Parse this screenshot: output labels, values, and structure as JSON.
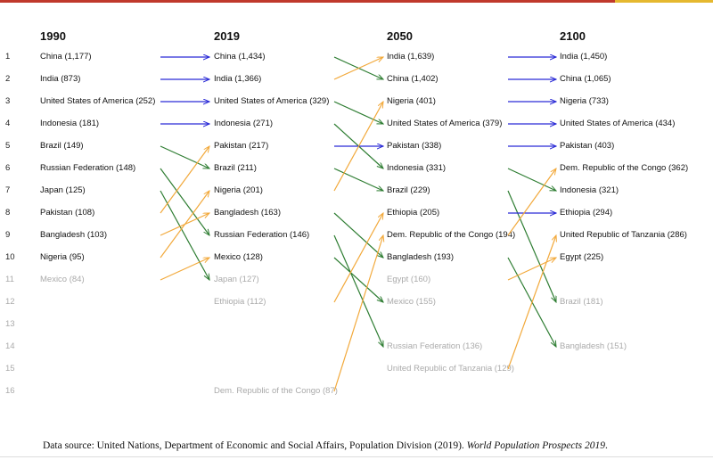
{
  "colors": {
    "same": "#2b2bd6",
    "up": "#f2a93b",
    "down": "#2e7d32",
    "faded_text": "#aaaaaa"
  },
  "years": [
    "1990",
    "2019",
    "2050",
    "2100"
  ],
  "ranks": [
    "1",
    "2",
    "3",
    "4",
    "5",
    "6",
    "7",
    "8",
    "9",
    "10",
    "11",
    "12",
    "13",
    "14",
    "15",
    "16"
  ],
  "columns": [
    {
      "entries": [
        {
          "rank": 1,
          "label": "China (1,177)"
        },
        {
          "rank": 2,
          "label": "India (873)"
        },
        {
          "rank": 3,
          "label": "United States of America (252)"
        },
        {
          "rank": 4,
          "label": "Indonesia (181)"
        },
        {
          "rank": 5,
          "label": "Brazil (149)"
        },
        {
          "rank": 6,
          "label": "Russian Federation (148)"
        },
        {
          "rank": 7,
          "label": "Japan (125)"
        },
        {
          "rank": 8,
          "label": "Pakistan (108)"
        },
        {
          "rank": 9,
          "label": "Bangladesh (103)"
        },
        {
          "rank": 10,
          "label": "Nigeria (95)"
        },
        {
          "rank": 11,
          "label": "Mexico (84)"
        }
      ]
    },
    {
      "entries": [
        {
          "rank": 1,
          "label": "China (1,434)"
        },
        {
          "rank": 2,
          "label": "India (1,366)"
        },
        {
          "rank": 3,
          "label": "United States of America (329)"
        },
        {
          "rank": 4,
          "label": "Indonesia (271)"
        },
        {
          "rank": 5,
          "label": "Pakistan (217)"
        },
        {
          "rank": 6,
          "label": "Brazil (211)"
        },
        {
          "rank": 7,
          "label": "Nigeria (201)"
        },
        {
          "rank": 8,
          "label": "Bangladesh (163)"
        },
        {
          "rank": 9,
          "label": "Russian Federation (146)"
        },
        {
          "rank": 10,
          "label": "Mexico (128)"
        },
        {
          "rank": 11,
          "label": "Japan (127)"
        },
        {
          "rank": 12,
          "label": "Ethiopia (112)"
        },
        {
          "rank": 16,
          "label": "Dem. Republic of the Congo (87)"
        }
      ]
    },
    {
      "entries": [
        {
          "rank": 1,
          "label": "India (1,639)"
        },
        {
          "rank": 2,
          "label": "China (1,402)"
        },
        {
          "rank": 3,
          "label": "Nigeria (401)"
        },
        {
          "rank": 4,
          "label": "United States of America (379)"
        },
        {
          "rank": 5,
          "label": "Pakistan (338)"
        },
        {
          "rank": 6,
          "label": "Indonesia (331)"
        },
        {
          "rank": 7,
          "label": "Brazil (229)"
        },
        {
          "rank": 8,
          "label": "Ethiopia (205)"
        },
        {
          "rank": 9,
          "label": "Dem. Republic of the Congo (194)"
        },
        {
          "rank": 10,
          "label": "Bangladesh (193)"
        },
        {
          "rank": 11,
          "label": "Egypt (160)"
        },
        {
          "rank": 12,
          "label": "Mexico (155)"
        },
        {
          "rank": 14,
          "label": "Russian Federation (136)"
        },
        {
          "rank": 15,
          "label": "United Republic of Tanzania (129)"
        }
      ]
    },
    {
      "entries": [
        {
          "rank": 1,
          "label": "India (1,450)"
        },
        {
          "rank": 2,
          "label": "China (1,065)"
        },
        {
          "rank": 3,
          "label": "Nigeria (733)"
        },
        {
          "rank": 4,
          "label": "United States of America (434)"
        },
        {
          "rank": 5,
          "label": "Pakistan (403)"
        },
        {
          "rank": 6,
          "label": "Dem. Republic of the Congo (362)"
        },
        {
          "rank": 7,
          "label": "Indonesia (321)"
        },
        {
          "rank": 8,
          "label": "Ethiopia (294)"
        },
        {
          "rank": 9,
          "label": "United Republic of Tanzania (286)"
        },
        {
          "rank": 10,
          "label": "Egypt (225)"
        },
        {
          "rank": 12,
          "label": "Brazil (181)"
        },
        {
          "rank": 14,
          "label": "Bangladesh (151)"
        }
      ]
    }
  ],
  "transitions": [
    [
      [
        1,
        1
      ],
      [
        2,
        2
      ],
      [
        3,
        3
      ],
      [
        4,
        4
      ],
      [
        5,
        6
      ],
      [
        6,
        9
      ],
      [
        7,
        11
      ],
      [
        8,
        5
      ],
      [
        9,
        8
      ],
      [
        10,
        7
      ],
      [
        11,
        10
      ]
    ],
    [
      [
        1,
        2
      ],
      [
        2,
        1
      ],
      [
        3,
        4
      ],
      [
        4,
        6
      ],
      [
        5,
        5
      ],
      [
        6,
        7
      ],
      [
        7,
        3
      ],
      [
        8,
        10
      ],
      [
        9,
        14
      ],
      [
        10,
        12
      ],
      [
        12,
        8
      ],
      [
        16,
        9
      ]
    ],
    [
      [
        1,
        1
      ],
      [
        2,
        2
      ],
      [
        3,
        3
      ],
      [
        4,
        4
      ],
      [
        5,
        5
      ],
      [
        6,
        7
      ],
      [
        7,
        12
      ],
      [
        8,
        8
      ],
      [
        9,
        6
      ],
      [
        10,
        14
      ],
      [
        11,
        10
      ],
      [
        15,
        9
      ]
    ]
  ],
  "source": {
    "prefix": "Data source: United Nations, Department of Economic and Social Affairs, Population Division (2019). ",
    "title": "World Population Prospects 2019",
    "suffix": "."
  }
}
